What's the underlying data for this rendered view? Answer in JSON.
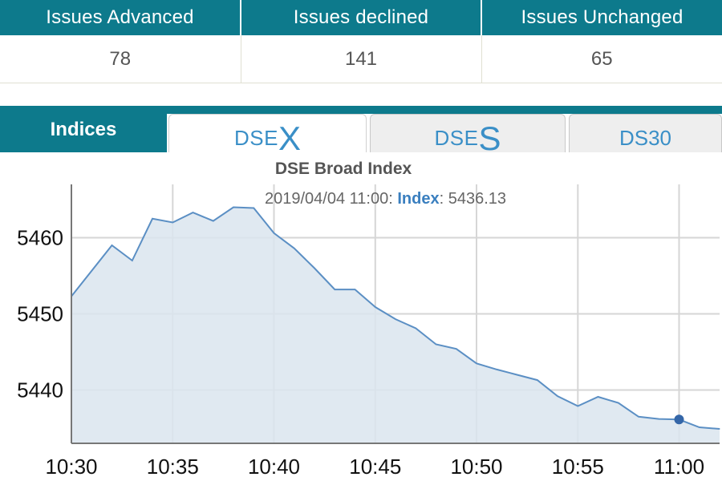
{
  "market_stats": {
    "headers": [
      "Issues Advanced",
      "Issues declined",
      "Issues Unchanged"
    ],
    "values": [
      "78",
      "141",
      "65"
    ]
  },
  "tabs": {
    "section_label": "Indices",
    "items": [
      {
        "prefix": "DSE",
        "suffix": "X",
        "active": true
      },
      {
        "prefix": "DSE",
        "suffix": "S",
        "active": false
      },
      {
        "label": "DS30",
        "active": false
      }
    ]
  },
  "chart_data": {
    "type": "area",
    "title": "DSE Broad Index",
    "tooltip": {
      "datetime": "2019/04/04 11:00:",
      "series_label": "Index",
      "separator": ":",
      "value": "5436.13"
    },
    "x_ticks": [
      "10:30",
      "10:35",
      "10:40",
      "10:45",
      "10:50",
      "10:55",
      "11:00"
    ],
    "y_ticks": [
      5440,
      5450,
      5460
    ],
    "xlim": [
      "10:30",
      "11:02"
    ],
    "ylim": [
      5433,
      5467
    ],
    "series": [
      {
        "x": [
          "10:30",
          "10:32",
          "10:33",
          "10:34",
          "10:35",
          "10:36",
          "10:37",
          "10:38",
          "10:39",
          "10:40",
          "10:41",
          "10:42",
          "10:43",
          "10:44",
          "10:45",
          "10:46",
          "10:47",
          "10:48",
          "10:49",
          "10:50",
          "10:51",
          "10:52",
          "10:53",
          "10:54",
          "10:55",
          "10:56",
          "10:57",
          "10:58",
          "10:59",
          "11:00",
          "11:01",
          "11:02"
        ],
        "values": [
          5452.3,
          5459.0,
          5457.0,
          5462.5,
          5462.0,
          5463.3,
          5462.2,
          5464.0,
          5463.9,
          5460.6,
          5458.6,
          5456.0,
          5453.2,
          5453.2,
          5450.9,
          5449.3,
          5448.1,
          5446.0,
          5445.4,
          5443.5,
          5442.7,
          5442.0,
          5441.3,
          5439.2,
          5437.9,
          5439.1,
          5438.3,
          5436.5,
          5436.2,
          5436.13,
          5435.1,
          5434.9
        ],
        "color": "#5b8fc4",
        "fill": "#dbe5ef"
      }
    ],
    "grid": true,
    "highlight_point": {
      "x": "11:00",
      "value": 5436.13
    }
  }
}
